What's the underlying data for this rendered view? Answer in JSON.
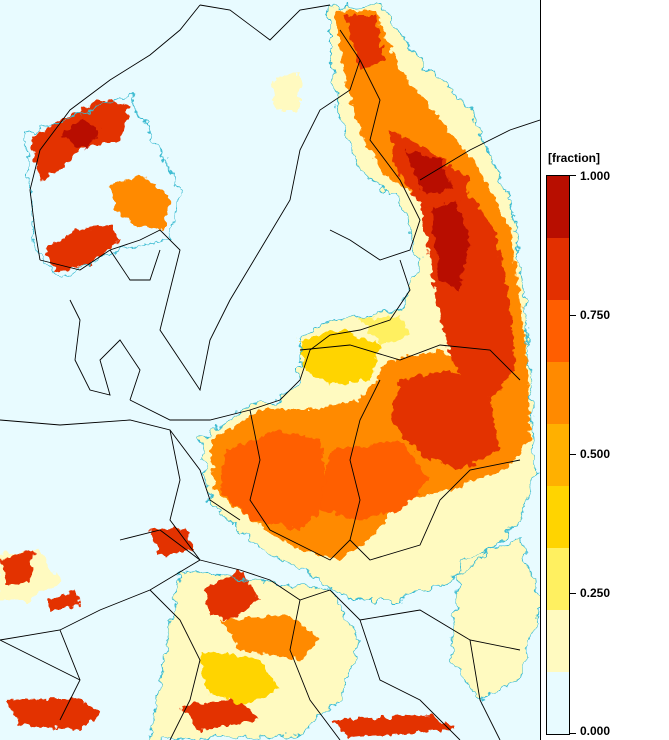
{
  "legend": {
    "title": "[fraction]",
    "labels": [
      "1.000",
      "0.750",
      "0.500",
      "0.250",
      "0.000"
    ],
    "classes": [
      {
        "color": "#e8fbff"
      },
      {
        "color": "#fffac0"
      },
      {
        "color": "#fff060"
      },
      {
        "color": "#ffd400"
      },
      {
        "color": "#ffb000"
      },
      {
        "color": "#ff8a00"
      },
      {
        "color": "#ff5e00"
      },
      {
        "color": "#e33000"
      },
      {
        "color": "#b80e00"
      }
    ]
  },
  "map": {
    "background_color": "#e8fbff",
    "contour_color": "#3bbbd1",
    "border_color": "#000000"
  }
}
